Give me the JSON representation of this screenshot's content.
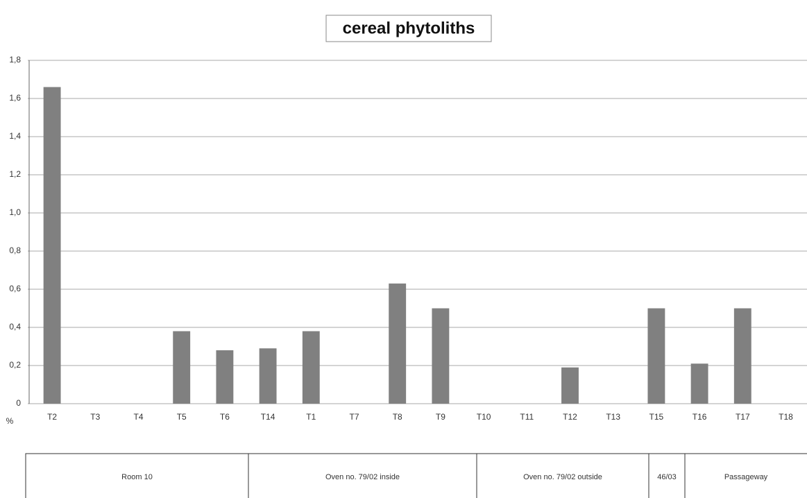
{
  "chart_data": {
    "type": "bar",
    "title": "cereal phytoliths",
    "y_label": "%",
    "categories": [
      "T2",
      "T3",
      "T4",
      "T5",
      "T6",
      "T14",
      "T1",
      "T7",
      "T8",
      "T9",
      "T10",
      "T11",
      "T12",
      "T13",
      "T15",
      "T16",
      "T17",
      "T18"
    ],
    "values": [
      1.66,
      0,
      0,
      0.38,
      0.28,
      0.29,
      0.38,
      0,
      0.63,
      0.5,
      0,
      0,
      0.19,
      0,
      0.5,
      0.21,
      0.5,
      0
    ],
    "color": "#808080",
    "ylim": [
      0,
      1.8
    ],
    "yticks": [
      0,
      {
        "value": 0.2,
        "label": "0,2"
      },
      {
        "value": 0.4,
        "label": "0,4"
      },
      {
        "value": 0.6,
        "label": "0,6"
      },
      {
        "value": 0.8,
        "label": "0,8"
      },
      {
        "value": 1.0,
        "label": "1,0"
      },
      {
        "value": 1.2,
        "label": "1,2"
      },
      {
        "value": 1.4,
        "label": "1,4"
      },
      {
        "value": 1.6,
        "label": "1,6"
      },
      {
        "value": 1.8,
        "label": "1,8"
      }
    ],
    "grid": true,
    "groups": [
      "Room 10",
      "Oven no. 79/02 inside",
      "Oven no. 79/02 outside",
      "46/03",
      "Passageway"
    ]
  }
}
